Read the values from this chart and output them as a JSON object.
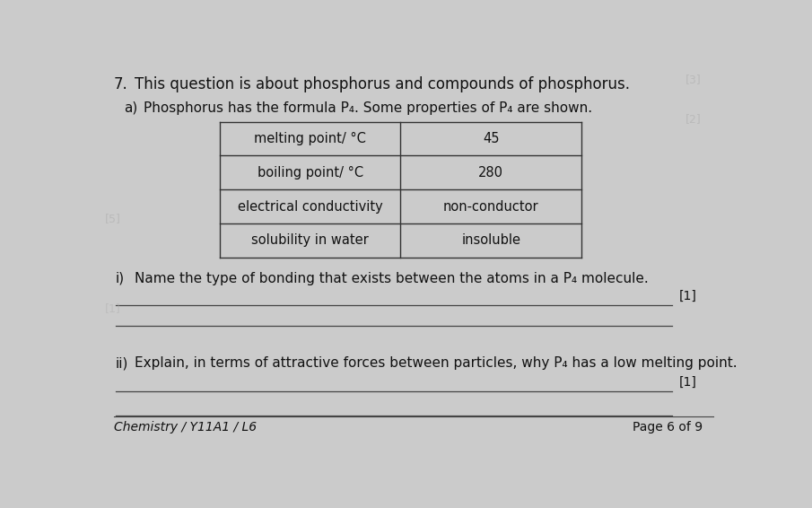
{
  "background_color": "#cbcbcb",
  "question_number": "7.",
  "question_text": "This question is about phosphorus and compounds of phosphorus.",
  "sub_a_prefix": "a)",
  "sub_a_text": "Phosphorus has the formula P₄. Some properties of P₄ are shown.",
  "table": {
    "col1": [
      "melting point/ °C",
      "boiling point/ °C",
      "electrical conductivity",
      "solubility in water"
    ],
    "col2": [
      "45",
      "280",
      "non-conductor",
      "insoluble"
    ]
  },
  "sub_i_label": "i)",
  "sub_i_text": "Name the type of bonding that exists between the atoms in a P₄ molecule.",
  "sub_ii_label": "ii)",
  "sub_ii_text": "Explain, in terms of attractive forces between particles, why P₄ has a low melting point.",
  "mark_1": "[1]",
  "mark_2": "[1]",
  "footer_left": "Chemistry / Y11A1 / L6",
  "footer_right": "Page 6 of 9",
  "text_color": "#111111",
  "line_color": "#444444",
  "table_line_color": "#333333",
  "watermark_color": "#b0b0b0",
  "font_size_heading": 12,
  "font_size_body": 11,
  "font_size_table": 10.5,
  "font_size_footer": 10,
  "font_size_mark": 10
}
